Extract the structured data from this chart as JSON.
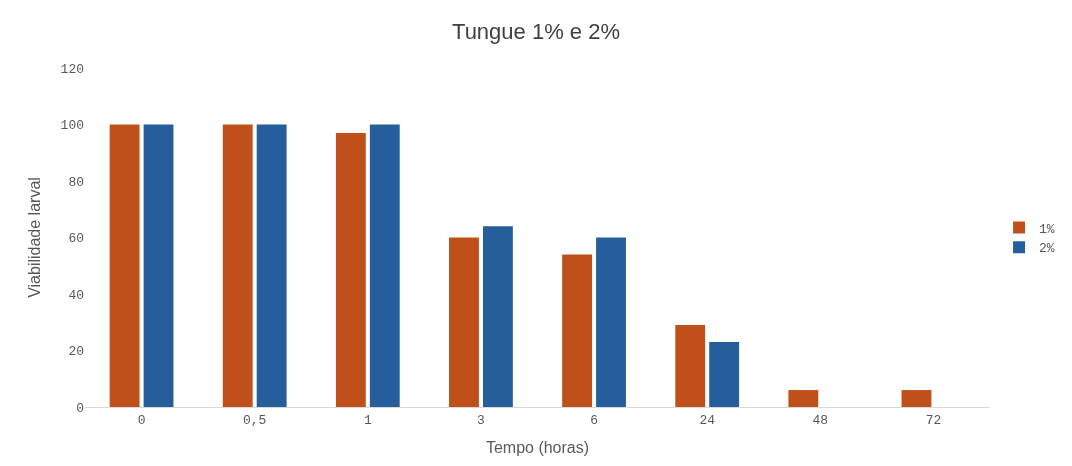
{
  "chart_data": {
    "type": "bar",
    "title": "Tungue 1% e 2%",
    "xlabel": "Tempo (horas)",
    "ylabel": "Viabilidade larval",
    "categories": [
      "0",
      "0,5",
      "1",
      "3",
      "6",
      "24",
      "48",
      "72"
    ],
    "series": [
      {
        "name": "1%",
        "color": "#c0501a",
        "values": [
          100,
          100,
          97,
          60,
          54,
          29,
          6,
          6
        ]
      },
      {
        "name": "2%",
        "color": "#255e9b",
        "values": [
          100,
          100,
          100,
          64,
          60,
          23,
          0,
          0
        ]
      }
    ],
    "ylim": [
      0,
      120
    ],
    "yticks": [
      0,
      20,
      40,
      60,
      80,
      100,
      120
    ],
    "grid": false,
    "legend": "right"
  }
}
